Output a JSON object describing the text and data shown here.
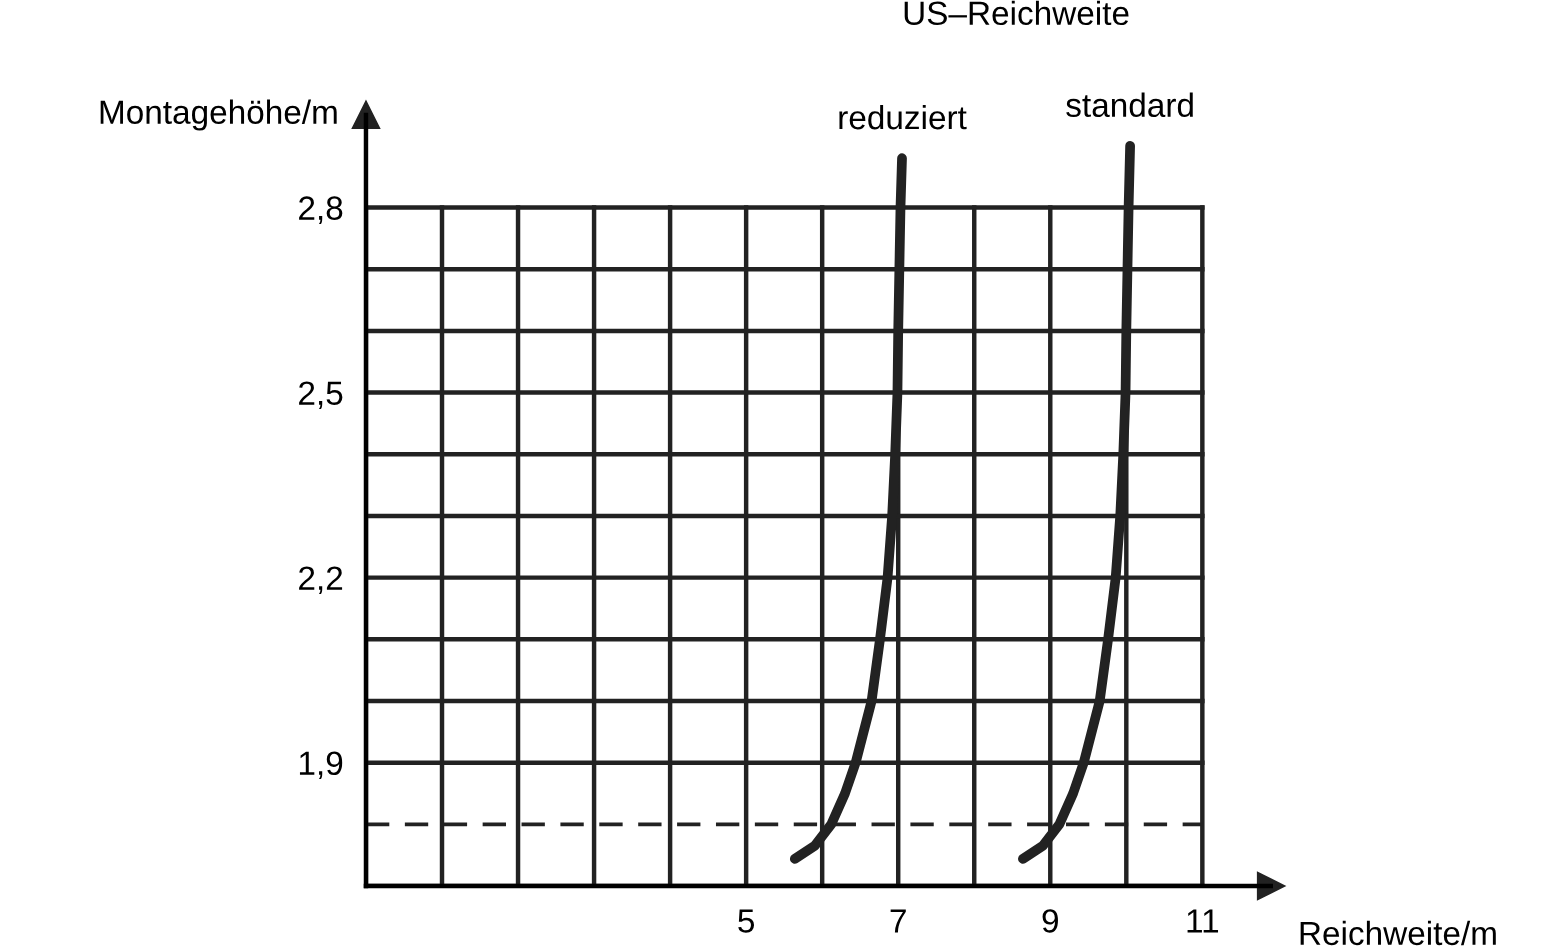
{
  "chart_data": {
    "type": "line",
    "xlabel": "Reichweite/m",
    "ylabel": "Montagehöhe/m",
    "annotations": [
      "US–Reichweite"
    ],
    "series": [
      {
        "name": "reduziert",
        "color": "#222222",
        "x": [
          5.64,
          5.9,
          6.12,
          6.3,
          6.44,
          6.65,
          6.76,
          6.86,
          6.92,
          6.96,
          6.99,
          7.0,
          7.03,
          7.05
        ],
        "values": [
          1.744,
          1.765,
          1.8,
          1.85,
          1.9,
          2.0,
          2.1,
          2.2,
          2.3,
          2.4,
          2.5,
          2.6,
          2.8,
          2.88
        ]
      },
      {
        "name": "standard",
        "color": "#222222",
        "x": [
          8.64,
          8.9,
          9.12,
          9.3,
          9.44,
          9.65,
          9.76,
          9.86,
          9.92,
          9.96,
          9.99,
          10.0,
          10.03,
          10.05
        ],
        "values": [
          1.744,
          1.765,
          1.8,
          1.85,
          1.9,
          2.0,
          2.1,
          2.2,
          2.3,
          2.4,
          2.5,
          2.6,
          2.8,
          2.9
        ]
      }
    ],
    "ref_lines": [
      {
        "axis": "y",
        "value": 1.8,
        "line_style": "dashed",
        "color": "#222222"
      }
    ],
    "xlim": [
      0,
      11.9
    ],
    "ylim": [
      1.7,
      2.95
    ],
    "xticks": [
      {
        "value": 0,
        "label": null
      },
      {
        "value": 1,
        "label": null
      },
      {
        "value": 2,
        "label": null
      },
      {
        "value": 3,
        "label": null
      },
      {
        "value": 4,
        "label": null
      },
      5,
      {
        "value": 6,
        "label": null
      },
      7,
      {
        "value": 8,
        "label": null
      },
      9,
      {
        "value": 10,
        "label": null
      },
      11
    ],
    "yticks": [
      {
        "value": 1.7,
        "label": null
      },
      {
        "value": 1.8,
        "label": null
      },
      {
        "value": 1.9,
        "label": "1,9"
      },
      {
        "value": 2.0,
        "label": null
      },
      {
        "value": 2.1,
        "label": null
      },
      {
        "value": 2.2,
        "label": "2,2"
      },
      {
        "value": 2.3,
        "label": null
      },
      {
        "value": 2.4,
        "label": null
      },
      {
        "value": 2.5,
        "label": "2,5"
      },
      {
        "value": 2.6,
        "label": null
      },
      {
        "value": 2.7,
        "label": null
      },
      {
        "value": 2.8,
        "label": "2,8"
      }
    ],
    "grid": true,
    "legend": false,
    "marker": "none",
    "line_style": "solid"
  }
}
